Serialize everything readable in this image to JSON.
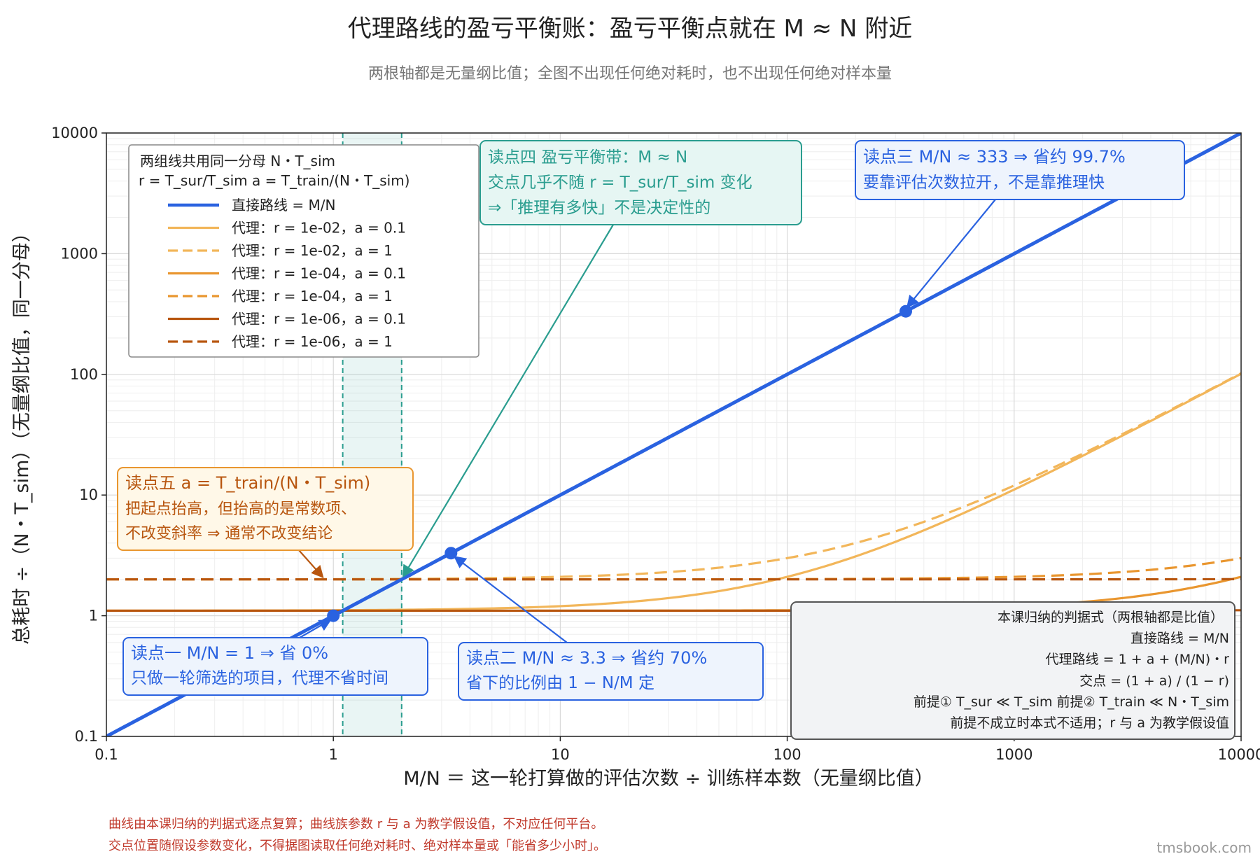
{
  "title": "代理路线的盈亏平衡账：盈亏平衡点就在 M ≈ N 附近",
  "subtitle": "两根轴都是无量纲比值；全图不出现任何绝对耗时，也不出现任何绝对样本量",
  "xlabel": "M/N ＝ 这一轮打算做的评估次数 ÷ 训练样本数（无量纲比值）",
  "ylabel": "总耗时 ÷（N・T_sim）（无量纲比值，同一分母）",
  "colors": {
    "direct": "#2a62e0",
    "proxy_light": "#f2b65a",
    "proxy_mid": "#e9962f",
    "proxy_dark": "#b8560f",
    "teal": "#2a9d8f",
    "note_red": "#c0392b"
  },
  "legend": {
    "header_1": "两组线共用同一分母 N・T_sim",
    "header_2": "r = T_sur/T_sim   a = T_train/(N・T_sim)",
    "items": [
      "直接路线 = M/N",
      "代理：r = 1e-02，a = 0.1",
      "代理：r = 1e-02，a = 1",
      "代理：r = 1e-04，a = 0.1",
      "代理：r = 1e-04，a = 1",
      "代理：r = 1e-06，a = 0.1",
      "代理：r = 1e-06，a = 1"
    ]
  },
  "annotations": {
    "a1": {
      "title": "读点一   M/N = 1   ⇒ 省 0%",
      "body": "只做一轮筛选的项目，代理不省时间"
    },
    "a2": {
      "title": "读点二   M/N ≈ 3.3   ⇒ 省约 70%",
      "body": "省下的比例由 1 − N/M 定"
    },
    "a3": {
      "title": "读点三   M/N ≈ 333   ⇒ 省约 99.7%",
      "body": "要靠评估次数拉开，不是靠推理快"
    },
    "a4": {
      "title": "读点四   盈亏平衡带：M ≈ N",
      "body1": "交点几乎不随 r = T_sur/T_sim 变化",
      "body2": "⇒「推理有多快」不是决定性的"
    },
    "a5": {
      "title": "读点五   a = T_train/(N・T_sim)",
      "body1": "把起点抬高，但抬高的是常数项、",
      "body2": "不改变斜率 ⇒ 通常不改变结论"
    }
  },
  "formula_box": {
    "title": "本课归纳的判据式（两根轴都是比值）",
    "line1": "直接路线   = M/N",
    "line2": "代理路线   = 1 + a + (M/N)・r",
    "line3": "交点         = (1 + a) / (1 − r)",
    "line4": "前提①   T_sur ≪ T_sim      前提②   T_train ≪ N・T_sim",
    "line5": "前提不成立时本式不适用；r 与 a 为教学假设值"
  },
  "footnote_1": "曲线由本课归纳的判据式逐点复算；曲线族参数 r 与 a 为教学假设值，不对应任何平台。",
  "footnote_2": "交点位置随假设参数变化，不得据图读取任何绝对耗时、绝对样本量或「能省多少小时」。",
  "watermark": "tmsbook.com",
  "chart_data": {
    "type": "line",
    "x_scale": "log",
    "y_scale": "log",
    "xlim": [
      0.1,
      10000
    ],
    "ylim": [
      0.1,
      10000
    ],
    "x_ticks": [
      "0.1",
      "1",
      "10",
      "100",
      "1000",
      "10000"
    ],
    "y_ticks": [
      "0.1",
      "1",
      "10",
      "100",
      "1000",
      "10000"
    ],
    "grid": true,
    "legend_position": "top-left",
    "series": [
      {
        "name": "直接路线 = M/N",
        "formula": "M/N",
        "color": "#2a62e0",
        "dash": false
      },
      {
        "name": "代理：r = 1e-02，a = 0.1",
        "r": 0.01,
        "a": 0.1,
        "color": "#f2b65a",
        "dash": false
      },
      {
        "name": "代理：r = 1e-02，a = 1",
        "r": 0.01,
        "a": 1,
        "color": "#f2b65a",
        "dash": true
      },
      {
        "name": "代理：r = 1e-04，a = 0.1",
        "r": 0.0001,
        "a": 0.1,
        "color": "#e9962f",
        "dash": false
      },
      {
        "name": "代理：r = 1e-04，a = 1",
        "r": 0.0001,
        "a": 1,
        "color": "#e9962f",
        "dash": true
      },
      {
        "name": "代理：r = 1e-06，a = 0.1",
        "r": 1e-06,
        "a": 0.1,
        "color": "#b8560f",
        "dash": false
      },
      {
        "name": "代理：r = 1e-06，a = 1",
        "r": 1e-06,
        "a": 1,
        "color": "#b8560f",
        "dash": true
      }
    ],
    "breakeven_band": [
      1.1,
      2.0
    ],
    "highlight_points": [
      [
        1,
        1
      ],
      [
        3.3,
        3.3
      ],
      [
        333,
        333
      ]
    ]
  }
}
